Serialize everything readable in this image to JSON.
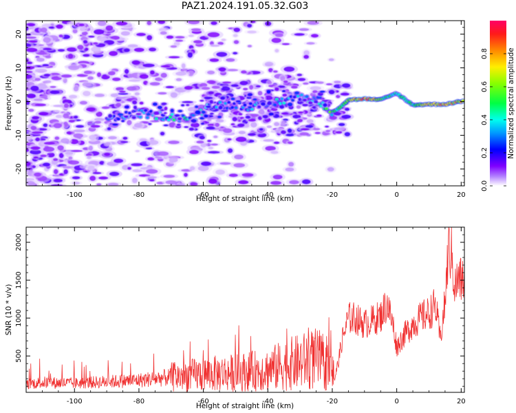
{
  "title": "PAZ1.2024.191.05.32.G03",
  "chart_data": [
    {
      "type": "heatmap",
      "xlabel": "Height of straight line (km)",
      "ylabel": "Frequency (Hz)",
      "xlim": [
        -115,
        21
      ],
      "ylim": [
        -25,
        24
      ],
      "xticks": [
        -100,
        -80,
        -60,
        -40,
        -20,
        0,
        20
      ],
      "xtick_labels": [
        "-100",
        "-80",
        "-60",
        "-40",
        "-20",
        "0",
        "20"
      ],
      "yticks": [
        20,
        10,
        0,
        -10,
        -20
      ],
      "ytick_labels": [
        "20",
        "10",
        "0",
        "-10",
        "-20"
      ],
      "colorbar": {
        "label": "Normalized spectral amplitude",
        "range": [
          0,
          1
        ],
        "ticks": [
          0.0,
          0.2,
          0.4,
          0.6,
          0.8
        ],
        "tick_labels": [
          "0.0",
          "0.2",
          "0.4",
          "0.6",
          "0.8"
        ],
        "colormap": "gist_rainbow_r"
      },
      "ridge": {
        "x": [
          -90,
          -80,
          -70,
          -63,
          -58,
          -50,
          -45,
          -40,
          -35,
          -30,
          -25,
          -22,
          -20,
          -18,
          -15,
          -10,
          -5,
          0,
          3,
          5,
          10,
          15,
          21
        ],
        "frequency": [
          -5,
          -3.5,
          -4.5,
          -5,
          -1,
          -1,
          -1.5,
          -1,
          0.5,
          1.5,
          0.5,
          -1.5,
          -3,
          -2,
          0.5,
          0.8,
          0.5,
          2.5,
          0.3,
          -1,
          -0.8,
          -0.8,
          0.2
        ],
        "amplitude": [
          0.25,
          0.3,
          0.4,
          0.38,
          0.3,
          0.25,
          0.3,
          0.32,
          0.35,
          0.3,
          0.4,
          0.45,
          0.5,
          0.45,
          0.55,
          0.85,
          0.55,
          0.4,
          0.5,
          0.45,
          0.7,
          0.75,
          0.7
        ]
      }
    },
    {
      "type": "line",
      "xlabel": "Height of straight line (km)",
      "ylabel": "SNR (10 * v/v)",
      "xlim": [
        -115,
        21
      ],
      "ylim": [
        20,
        2200
      ],
      "xticks": [
        -100,
        -80,
        -60,
        -40,
        -20,
        0,
        20
      ],
      "xtick_labels": [
        "-100",
        "-80",
        "-60",
        "-40",
        "-20",
        "0",
        "20"
      ],
      "yticks": [
        500,
        1000,
        1500,
        2000
      ],
      "ytick_labels": [
        "500",
        "1000",
        "1500",
        "2000"
      ],
      "color": "#f03030",
      "series": [
        {
          "x": [
            -115,
            -110,
            -100,
            -90,
            -80,
            -75,
            -70,
            -60,
            -50,
            -40,
            -35,
            -30,
            -25,
            -19,
            -18,
            -17,
            -15,
            -13,
            -10,
            -5,
            -3,
            -1,
            0,
            2,
            5,
            8,
            10,
            12,
            13.5,
            15,
            16,
            17,
            18,
            19,
            21
          ],
          "y": [
            130,
            150,
            140,
            160,
            180,
            200,
            220,
            260,
            280,
            320,
            380,
            420,
            460,
            250,
            450,
            700,
            1000,
            1000,
            920,
            1020,
            1200,
            880,
            620,
            760,
            920,
            1020,
            1060,
            1170,
            720,
            1200,
            1900,
            1850,
            1400,
            1500,
            1500
          ]
        }
      ]
    }
  ]
}
